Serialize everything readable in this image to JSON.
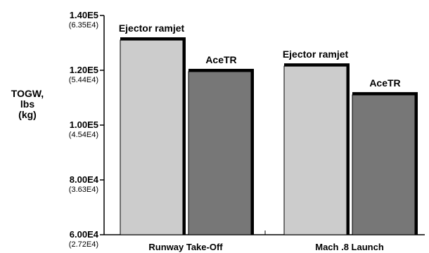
{
  "chart_data": {
    "type": "bar",
    "categories": [
      "Runway Take-Off",
      "Mach .8 Launch"
    ],
    "series": [
      {
        "name": "Ejector ramjet",
        "values": [
          131000,
          121500
        ],
        "color": "#cccccc"
      },
      {
        "name": "AceTR",
        "values": [
          119500,
          111000
        ],
        "color": "#777777"
      }
    ],
    "ylim": [
      60000,
      140000
    ],
    "yticks": [
      {
        "value": 60000,
        "label": "6.00E4",
        "sublabel": "(2.72E4)"
      },
      {
        "value": 80000,
        "label": "8.00E4",
        "sublabel": "(3.63E4)"
      },
      {
        "value": 100000,
        "label": "1.00E5",
        "sublabel": "(4.54E4)"
      },
      {
        "value": 120000,
        "label": "1.20E5",
        "sublabel": "(5.44E4)"
      },
      {
        "value": 140000,
        "label": "1.40E5",
        "sublabel": "(6.35E4)"
      }
    ],
    "ylabel": [
      "TOGW,",
      "lbs",
      "(kg)"
    ],
    "legend": "none (bars labeled directly)"
  }
}
